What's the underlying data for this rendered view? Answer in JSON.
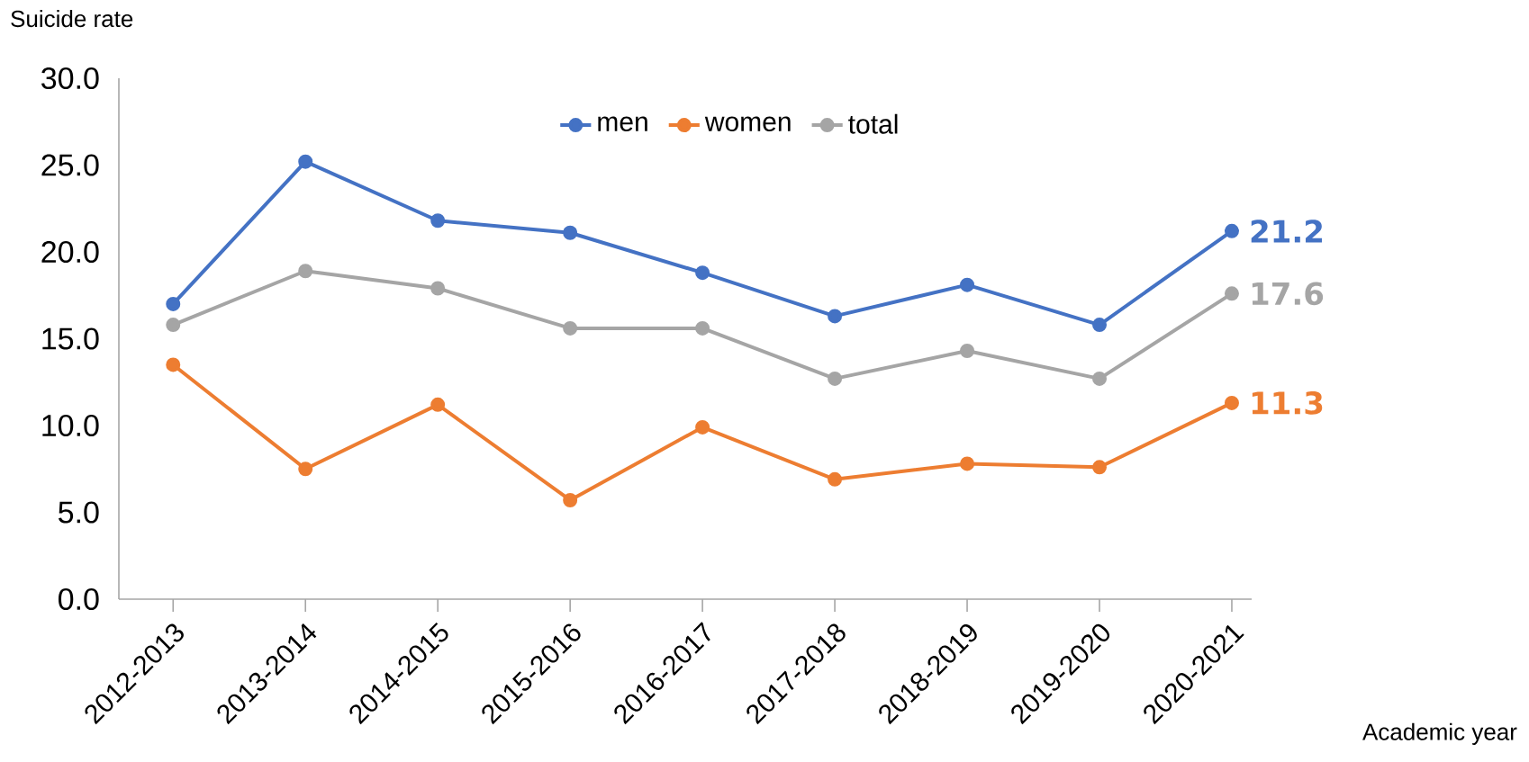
{
  "chart_data": {
    "type": "line",
    "xlabel": "Academic year",
    "ylabel": "Suicide rate",
    "categories": [
      "2012-2013",
      "2013-2014",
      "2014-2015",
      "2015-2016",
      "2016-2017",
      "2017-2018",
      "2018-2019",
      "2019-2020",
      "2020-2021"
    ],
    "series": [
      {
        "name": "men",
        "color": "#4472c4",
        "values": [
          17.0,
          25.2,
          21.8,
          21.1,
          18.8,
          16.3,
          18.1,
          15.8,
          21.2
        ],
        "value_labels": [
          null,
          null,
          null,
          null,
          null,
          null,
          null,
          null,
          "21.2"
        ]
      },
      {
        "name": "women",
        "color": "#ed7d31",
        "values": [
          13.5,
          7.5,
          11.2,
          5.7,
          9.9,
          6.9,
          7.8,
          7.6,
          11.3
        ],
        "value_labels": [
          null,
          null,
          null,
          null,
          null,
          null,
          null,
          null,
          "11.3"
        ]
      },
      {
        "name": "total",
        "color": "#a5a5a5",
        "values": [
          15.8,
          18.9,
          17.9,
          15.6,
          15.6,
          12.7,
          14.3,
          12.7,
          17.6
        ],
        "value_labels": [
          null,
          null,
          null,
          null,
          null,
          null,
          null,
          null,
          "17.6"
        ]
      }
    ],
    "ylim": [
      0,
      30
    ],
    "yticks": [
      {
        "value": 0,
        "label": "0.0"
      },
      {
        "value": 5,
        "label": "5.0"
      },
      {
        "value": 10,
        "label": "10.0"
      },
      {
        "value": 15,
        "label": "15.0"
      },
      {
        "value": 20,
        "label": "20.0"
      },
      {
        "value": 25,
        "label": "25.0"
      },
      {
        "value": 30,
        "label": "30.0"
      }
    ],
    "legend": "top",
    "marker": "circle",
    "line_style": "solid",
    "grid": false
  }
}
